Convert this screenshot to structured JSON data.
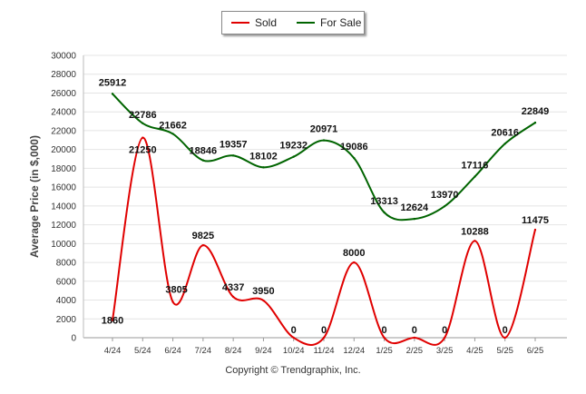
{
  "chart_data": {
    "type": "line",
    "categories": [
      "4/24",
      "5/24",
      "6/24",
      "7/24",
      "8/24",
      "9/24",
      "10/24",
      "11/24",
      "12/24",
      "1/25",
      "2/25",
      "3/25",
      "4/25",
      "5/25",
      "6/25"
    ],
    "series": [
      {
        "name": "Sold",
        "color": "#e00000",
        "values": [
          1860,
          21250,
          3805,
          9825,
          4337,
          3950,
          0,
          0,
          8000,
          0,
          0,
          0,
          10288,
          0,
          11475
        ]
      },
      {
        "name": "For Sale",
        "color": "#006400",
        "values": [
          25912,
          22786,
          21662,
          18846,
          19357,
          18102,
          19232,
          20971,
          19086,
          13313,
          12624,
          13970,
          17116,
          20616,
          22849
        ]
      }
    ],
    "ylabel": "Average Price (in $,000)",
    "ylim": [
      0,
      30000
    ],
    "yticks": [
      0,
      2000,
      4000,
      6000,
      8000,
      10000,
      12000,
      14000,
      16000,
      18000,
      20000,
      22000,
      24000,
      26000,
      28000,
      30000
    ],
    "grid": true,
    "legend_position": "top-center"
  },
  "footer": {
    "credit": "Copyright © Trendgraphix, Inc."
  }
}
